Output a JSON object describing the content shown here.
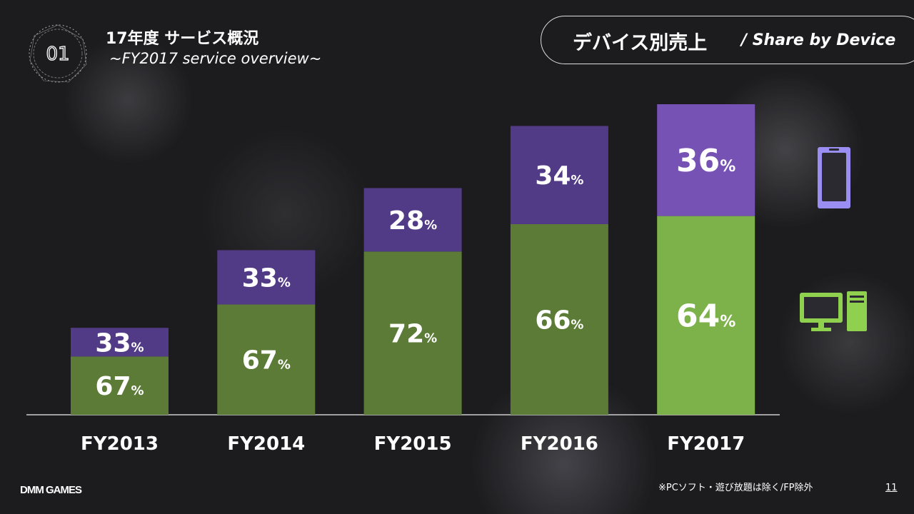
{
  "header": {
    "title": "17年度 サービス概況",
    "subtitle": "~FY2017 service overview~",
    "section_number": "01"
  },
  "banner": {
    "title_jp": "デバイス別売上",
    "title_en": "/ Share by Device"
  },
  "footer": {
    "note": "※PCソフト・遊び放題は除く/FP除外",
    "page": "11",
    "brand": "DMM GAMES"
  },
  "legend": [
    {
      "name": "smartphone",
      "icon": "smartphone-icon",
      "color": "#9b8ef2"
    },
    {
      "name": "pc",
      "icon": "desktop-pc-icon",
      "color": "#8fd14f"
    }
  ],
  "chart_data": {
    "type": "bar",
    "stacked": true,
    "categories": [
      "FY2013",
      "FY2014",
      "FY2015",
      "FY2016",
      "FY2017"
    ],
    "relative_total_index": [
      28,
      53,
      73,
      93,
      100
    ],
    "series": [
      {
        "name": "PC",
        "values": [
          67,
          67,
          72,
          66,
          64
        ],
        "labels": [
          "67",
          "67",
          "72",
          "66",
          "64"
        ],
        "color": "#5b7b36",
        "highlight_color": "#7db14a"
      },
      {
        "name": "Smartphone",
        "values": [
          33,
          33,
          28,
          34,
          36
        ],
        "labels": [
          "33",
          "33",
          "28",
          "34",
          "36"
        ],
        "color": "#523b86",
        "highlight_color": "#7552b3"
      }
    ],
    "unit": "%",
    "highlight": "FY2017"
  }
}
